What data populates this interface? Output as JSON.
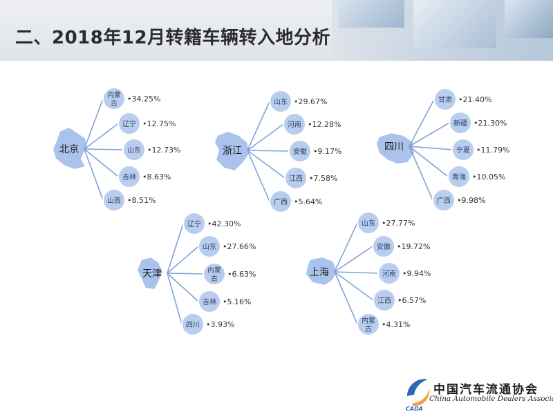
{
  "title": "二、2018年12月转籍车辆转入地分析",
  "logo": {
    "cn": "中国汽车流通协会",
    "en": "China Automobile Dealers Association",
    "mark": "CADA"
  },
  "colors": {
    "bubble_fill": "#b9cdee",
    "bubble_stroke": "#ffffff",
    "line": "#7fa3d8",
    "map_fill": "#a9c3ec",
    "map_stroke": "#ffffff"
  },
  "groups": [
    {
      "hub": "北京",
      "items": [
        {
          "label": [
            "内蒙",
            "古"
          ],
          "value": "34.25%"
        },
        {
          "label": [
            "辽宁"
          ],
          "value": "12.75%"
        },
        {
          "label": [
            "山东"
          ],
          "value": "12.73%"
        },
        {
          "label": [
            "吉林"
          ],
          "value": "8.63%"
        },
        {
          "label": [
            "山西"
          ],
          "value": "8.51%"
        }
      ]
    },
    {
      "hub": "浙江",
      "items": [
        {
          "label": [
            "山东"
          ],
          "value": "29.67%"
        },
        {
          "label": [
            "河南"
          ],
          "value": "12.28%"
        },
        {
          "label": [
            "安徽"
          ],
          "value": "9.17%"
        },
        {
          "label": [
            "江西"
          ],
          "value": "7.58%"
        },
        {
          "label": [
            "广西"
          ],
          "value": "5.64%"
        }
      ]
    },
    {
      "hub": "四川",
      "items": [
        {
          "label": [
            "甘肃"
          ],
          "value": "21.40%"
        },
        {
          "label": [
            "新疆"
          ],
          "value": "21.30%"
        },
        {
          "label": [
            "宁夏"
          ],
          "value": "11.79%"
        },
        {
          "label": [
            "青海"
          ],
          "value": "10.05%"
        },
        {
          "label": [
            "广西"
          ],
          "value": "9.98%"
        }
      ]
    },
    {
      "hub": "天津",
      "items": [
        {
          "label": [
            "辽宁"
          ],
          "value": "42.30%"
        },
        {
          "label": [
            "山东"
          ],
          "value": "27.66%"
        },
        {
          "label": [
            "内蒙",
            "古"
          ],
          "value": "6.63%"
        },
        {
          "label": [
            "吉林"
          ],
          "value": "5.16%"
        },
        {
          "label": [
            "四川"
          ],
          "value": "3.93%"
        }
      ]
    },
    {
      "hub": "上海",
      "items": [
        {
          "label": [
            "山东"
          ],
          "value": "27.77%"
        },
        {
          "label": [
            "安徽"
          ],
          "value": "19.72%"
        },
        {
          "label": [
            "河南"
          ],
          "value": "9.94%"
        },
        {
          "label": [
            "江西"
          ],
          "value": "6.57%"
        },
        {
          "label": [
            "内蒙",
            "古"
          ],
          "value": "4.31%"
        }
      ]
    }
  ]
}
